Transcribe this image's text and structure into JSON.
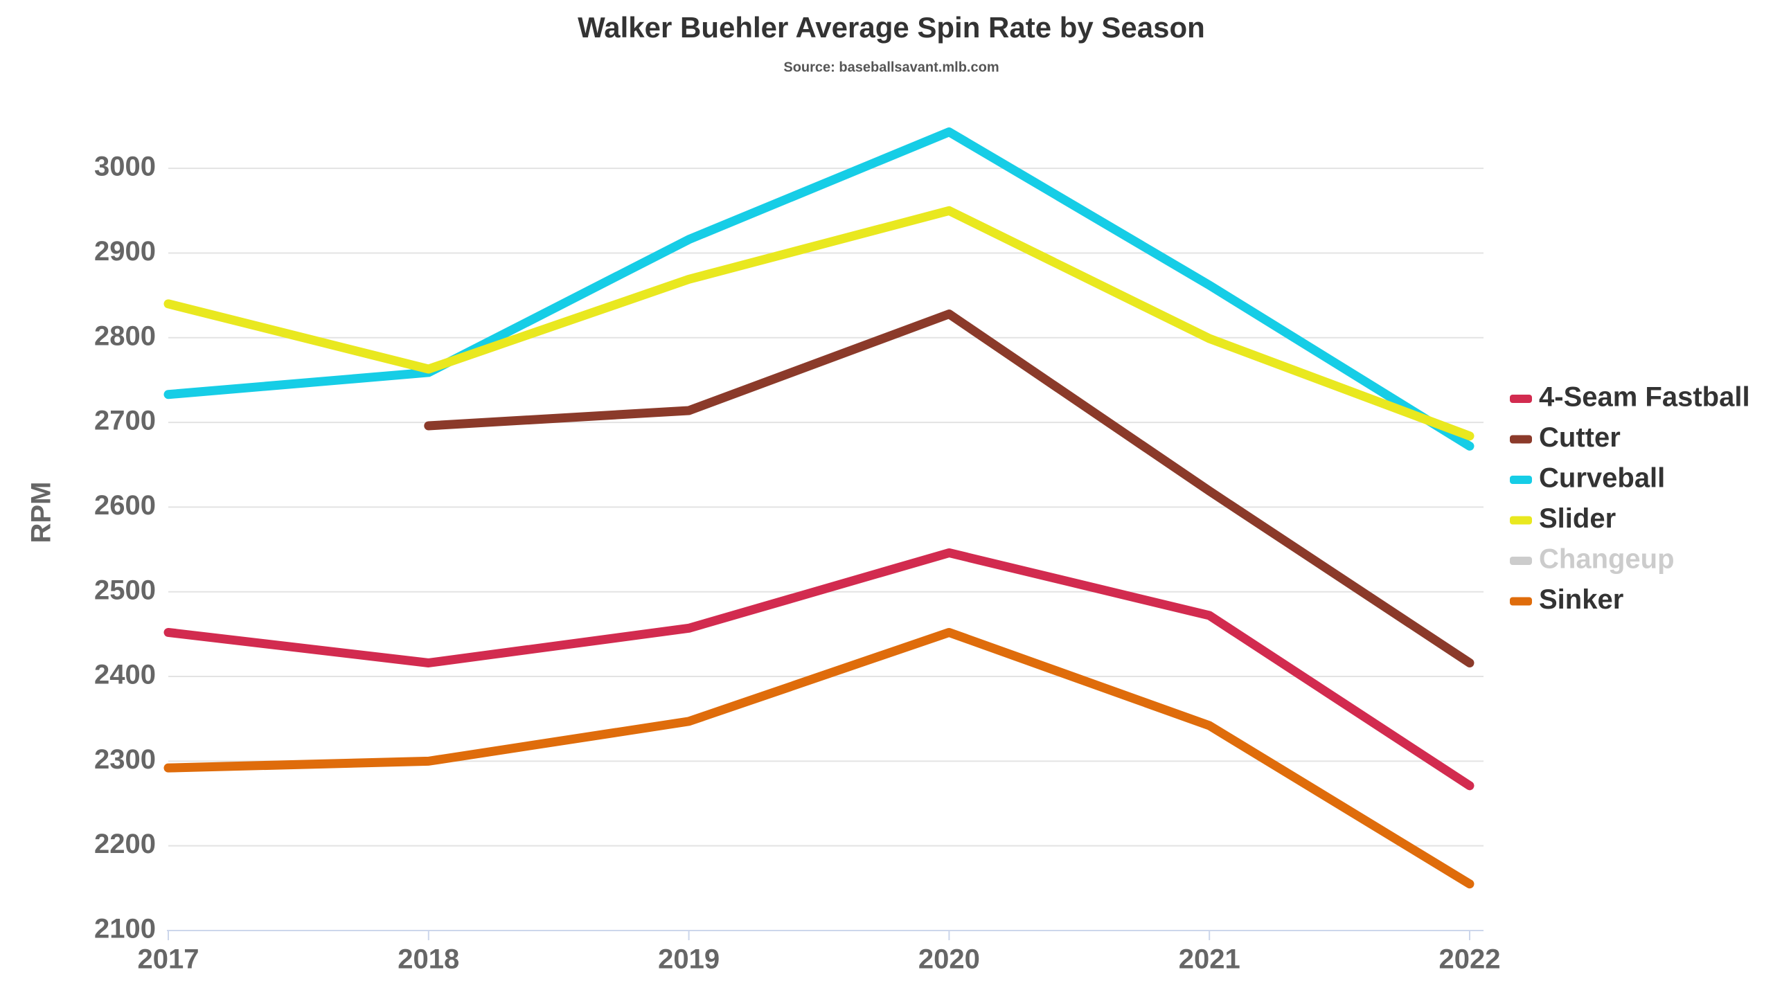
{
  "chart_data": {
    "type": "line",
    "title": "Walker Buehler Average Spin Rate by Season",
    "subtitle": "Source: baseballsavant.mlb.com",
    "y_label": "RPM",
    "categories": [
      "2017",
      "2018",
      "2019",
      "2020",
      "2021",
      "2022"
    ],
    "series": [
      {
        "name": "4-Seam Fastball",
        "color": "#d22b4f",
        "values": [
          2452,
          2416,
          2457,
          2546,
          2472,
          2271
        ]
      },
      {
        "name": "Cutter",
        "color": "#8b3a2a",
        "values": [
          null,
          2696,
          2714,
          2828,
          2619,
          2416
        ]
      },
      {
        "name": "Curveball",
        "color": "#16cde6",
        "values": [
          2733,
          2759,
          2916,
          3043,
          2862,
          2672
        ]
      },
      {
        "name": "Slider",
        "color": "#e9e81f",
        "values": [
          2840,
          2763,
          2869,
          2950,
          2799,
          2684
        ]
      },
      {
        "name": "Changeup",
        "color": "#cccccc",
        "values": [
          null,
          null,
          null,
          null,
          null,
          null
        ]
      },
      {
        "name": "Sinker",
        "color": "#df6c0b",
        "values": [
          2292,
          2300,
          2347,
          2452,
          2342,
          2155
        ]
      }
    ],
    "ylim": [
      2100,
      3050
    ],
    "yticks": [
      2100,
      2200,
      2300,
      2400,
      2500,
      2600,
      2700,
      2800,
      2900,
      3000
    ],
    "grid": true,
    "legend": "right"
  }
}
